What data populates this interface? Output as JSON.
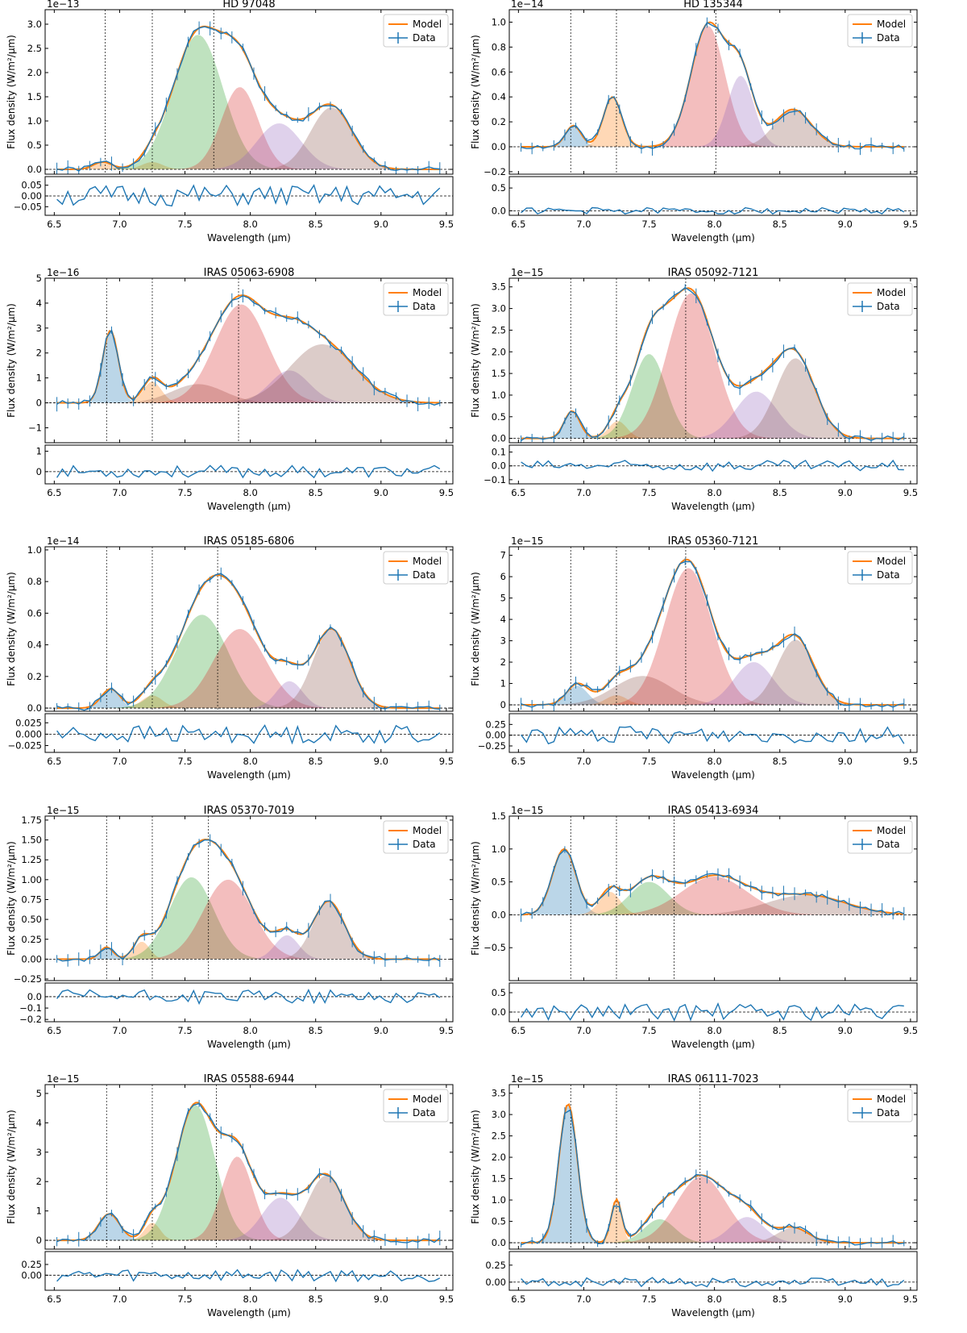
{
  "figure": {
    "legend": {
      "model": "Model",
      "data": "Data"
    },
    "ylabel": "Flux density (W/m²/µm)",
    "xlabel": "Wavelength (µm)",
    "xlim": [
      6.43,
      9.55
    ],
    "xticks": [
      "6.5",
      "7.0",
      "7.5",
      "8.0",
      "8.5",
      "9.0",
      "9.5"
    ],
    "colors": {
      "model": "#ff7f0e",
      "data": "#1f77b4",
      "c0": "#1f77b4",
      "c1": "#ff7f0e",
      "c2": "#2ca02c",
      "c3": "#d62728",
      "c4": "#9467bd",
      "c5": "#8c564b"
    }
  },
  "chart_data": [
    {
      "type": "line",
      "title": "HD 97048",
      "offset": "1e−13",
      "ylim": [
        -0.1,
        3.3
      ],
      "ticks": [
        "0.0",
        "0.5",
        "1.0",
        "1.5",
        "2.0",
        "2.5",
        "3.0"
      ],
      "tickvals": [
        0,
        0.5,
        1,
        1.5,
        2,
        2.5,
        3
      ],
      "vlines": [
        6.89,
        7.25,
        7.72
      ],
      "components": [
        {
          "c": "c1",
          "a": 0.15,
          "mu": 6.87,
          "s": 0.07
        },
        {
          "c": "c1",
          "a": 0.15,
          "mu": 7.25,
          "s": 0.08
        },
        {
          "c": "c2",
          "a": 2.78,
          "mu": 7.6,
          "s": 0.19
        },
        {
          "c": "c3",
          "a": 1.7,
          "mu": 7.92,
          "s": 0.14
        },
        {
          "c": "c4",
          "a": 0.95,
          "mu": 8.22,
          "s": 0.17
        },
        {
          "c": "c5",
          "a": 1.28,
          "mu": 8.62,
          "s": 0.16
        }
      ],
      "res": {
        "ylim": [
          -0.09,
          0.09
        ],
        "ticks": [
          "0.05",
          "0.00",
          "−0.05"
        ],
        "tickvals": [
          0.05,
          0,
          -0.05
        ],
        "amp": 0.05,
        "seed": 1
      }
    },
    {
      "type": "line",
      "title": "HD 135344",
      "offset": "1e−14",
      "ylim": [
        -0.22,
        1.1
      ],
      "ticks": [
        "−0.2",
        "0.0",
        "0.2",
        "0.4",
        "0.6",
        "0.8",
        "1.0"
      ],
      "tickvals": [
        -0.2,
        0,
        0.2,
        0.4,
        0.6,
        0.8,
        1.0
      ],
      "vlines": [
        6.9,
        7.25,
        8.01
      ],
      "components": [
        {
          "c": "c0",
          "a": 0.17,
          "mu": 6.92,
          "s": 0.06
        },
        {
          "c": "c1",
          "a": 0.4,
          "mu": 7.22,
          "s": 0.07
        },
        {
          "c": "c3",
          "a": 0.97,
          "mu": 7.95,
          "s": 0.13
        },
        {
          "c": "c4",
          "a": 0.57,
          "mu": 8.2,
          "s": 0.1
        },
        {
          "c": "c5",
          "a": 0.3,
          "mu": 8.6,
          "s": 0.14
        }
      ],
      "res": {
        "ylim": [
          -0.1,
          0.75
        ],
        "ticks": [
          "0.5",
          "0.0"
        ],
        "tickvals": [
          0.5,
          0
        ],
        "amp": 0.07,
        "seed": 2
      }
    },
    {
      "type": "line",
      "title": "IRAS 05063-6908",
      "offset": "1e−16",
      "ylim": [
        -1.6,
        5
      ],
      "ticks": [
        "−1",
        "0",
        "1",
        "2",
        "3",
        "4",
        "5"
      ],
      "tickvals": [
        -1,
        0,
        1,
        2,
        3,
        4,
        5
      ],
      "vlines": [
        6.9,
        7.25,
        7.91
      ],
      "components": [
        {
          "c": "c0",
          "a": 2.9,
          "mu": 6.93,
          "s": 0.06
        },
        {
          "c": "c1",
          "a": 0.85,
          "mu": 7.25,
          "s": 0.07
        },
        {
          "c": "c5",
          "a": 0.75,
          "mu": 7.6,
          "s": 0.2
        },
        {
          "c": "c3",
          "a": 3.95,
          "mu": 7.93,
          "s": 0.2
        },
        {
          "c": "c4",
          "a": 1.3,
          "mu": 8.3,
          "s": 0.15
        },
        {
          "c": "c5",
          "a": 2.35,
          "mu": 8.55,
          "s": 0.25
        }
      ],
      "res": {
        "ylim": [
          -0.6,
          1.3
        ],
        "ticks": [
          "1",
          "0"
        ],
        "tickvals": [
          1,
          0
        ],
        "amp": 0.3,
        "seed": 3
      }
    },
    {
      "type": "line",
      "title": "IRAS 05092-7121",
      "offset": "1e−15",
      "ylim": [
        -0.1,
        3.7
      ],
      "ticks": [
        "0.0",
        "0.5",
        "1.0",
        "1.5",
        "2.0",
        "2.5",
        "3.0",
        "3.5"
      ],
      "tickvals": [
        0,
        0.5,
        1,
        1.5,
        2,
        2.5,
        3,
        3.5
      ],
      "vlines": [
        6.9,
        7.25,
        7.78
      ],
      "components": [
        {
          "c": "c0",
          "a": 0.63,
          "mu": 6.91,
          "s": 0.06
        },
        {
          "c": "c1",
          "a": 0.4,
          "mu": 7.26,
          "s": 0.07
        },
        {
          "c": "c2",
          "a": 1.95,
          "mu": 7.5,
          "s": 0.13
        },
        {
          "c": "c3",
          "a": 3.35,
          "mu": 7.82,
          "s": 0.18
        },
        {
          "c": "c4",
          "a": 1.08,
          "mu": 8.32,
          "s": 0.16
        },
        {
          "c": "c5",
          "a": 1.85,
          "mu": 8.62,
          "s": 0.15
        }
      ],
      "res": {
        "ylim": [
          -0.13,
          0.15
        ],
        "ticks": [
          "0.1",
          "0.0",
          "−0.1"
        ],
        "tickvals": [
          0.1,
          0,
          -0.1
        ],
        "amp": 0.04,
        "seed": 4
      }
    },
    {
      "type": "line",
      "title": "IRAS 05185-6806",
      "offset": "1e−14",
      "ylim": [
        -0.02,
        1.02
      ],
      "ticks": [
        "0.0",
        "0.2",
        "0.4",
        "0.6",
        "0.8",
        "1.0"
      ],
      "tickvals": [
        0,
        0.2,
        0.4,
        0.6,
        0.8,
        1.0
      ],
      "vlines": [
        6.9,
        7.25,
        7.75
      ],
      "components": [
        {
          "c": "c0",
          "a": 0.12,
          "mu": 6.93,
          "s": 0.07
        },
        {
          "c": "c1",
          "a": 0.08,
          "mu": 7.25,
          "s": 0.08
        },
        {
          "c": "c2",
          "a": 0.59,
          "mu": 7.63,
          "s": 0.2
        },
        {
          "c": "c3",
          "a": 0.5,
          "mu": 7.92,
          "s": 0.2
        },
        {
          "c": "c4",
          "a": 0.17,
          "mu": 8.3,
          "s": 0.1
        },
        {
          "c": "c5",
          "a": 0.5,
          "mu": 8.62,
          "s": 0.14
        }
      ],
      "res": {
        "ylim": [
          -0.04,
          0.045
        ],
        "ticks": [
          "0.025",
          "0.000",
          "−0.025"
        ],
        "tickvals": [
          0.025,
          0,
          -0.025
        ],
        "amp": 0.02,
        "seed": 5
      }
    },
    {
      "type": "line",
      "title": "IRAS 05360-7121",
      "offset": "1e−15",
      "ylim": [
        -0.3,
        7.4
      ],
      "ticks": [
        "0",
        "1",
        "2",
        "3",
        "4",
        "5",
        "6",
        "7"
      ],
      "tickvals": [
        0,
        1,
        2,
        3,
        4,
        5,
        6,
        7
      ],
      "vlines": [
        6.9,
        7.25,
        7.78
      ],
      "components": [
        {
          "c": "c0",
          "a": 0.9,
          "mu": 6.95,
          "s": 0.08
        },
        {
          "c": "c1",
          "a": 0.45,
          "mu": 7.25,
          "s": 0.08
        },
        {
          "c": "c5",
          "a": 1.35,
          "mu": 7.45,
          "s": 0.22
        },
        {
          "c": "c3",
          "a": 6.4,
          "mu": 7.8,
          "s": 0.18
        },
        {
          "c": "c4",
          "a": 2.0,
          "mu": 8.3,
          "s": 0.15
        },
        {
          "c": "c5",
          "a": 3.05,
          "mu": 8.62,
          "s": 0.14
        }
      ],
      "res": {
        "ylim": [
          -0.4,
          0.5
        ],
        "ticks": [
          "0.25",
          "0.00",
          "−0.25"
        ],
        "tickvals": [
          0.25,
          0,
          -0.25
        ],
        "amp": 0.2,
        "seed": 6
      }
    },
    {
      "type": "line",
      "title": "IRAS 05370-7019",
      "offset": "1e−15",
      "ylim": [
        -0.27,
        1.8
      ],
      "ticks": [
        "−0.25",
        "0.00",
        "0.25",
        "0.50",
        "0.75",
        "1.00",
        "1.25",
        "1.50",
        "1.75"
      ],
      "tickvals": [
        -0.25,
        0,
        0.25,
        0.5,
        0.75,
        1,
        1.25,
        1.5,
        1.75
      ],
      "vlines": [
        6.9,
        7.25,
        7.68
      ],
      "components": [
        {
          "c": "c0",
          "a": 0.15,
          "mu": 6.9,
          "s": 0.05
        },
        {
          "c": "c1",
          "a": 0.22,
          "mu": 7.17,
          "s": 0.06
        },
        {
          "c": "c2",
          "a": 1.03,
          "mu": 7.55,
          "s": 0.17
        },
        {
          "c": "c3",
          "a": 1.0,
          "mu": 7.83,
          "s": 0.19
        },
        {
          "c": "c4",
          "a": 0.3,
          "mu": 8.28,
          "s": 0.09
        },
        {
          "c": "c5",
          "a": 0.73,
          "mu": 8.6,
          "s": 0.12
        }
      ],
      "res": {
        "ylim": [
          -0.22,
          0.12
        ],
        "ticks": [
          "0.0",
          "−0.1",
          "−0.2"
        ],
        "tickvals": [
          0,
          -0.1,
          -0.2
        ],
        "amp": 0.06,
        "seed": 7
      }
    },
    {
      "type": "line",
      "title": "IRAS 05413-6934",
      "offset": "1e−15",
      "ylim": [
        -1.0,
        1.5
      ],
      "ticks": [
        "−0.5",
        "0.0",
        "0.5",
        "1.0",
        "1.5"
      ],
      "tickvals": [
        -0.5,
        0,
        0.5,
        1,
        1.5
      ],
      "vlines": [
        6.9,
        7.25,
        7.69
      ],
      "components": [
        {
          "c": "c0",
          "a": 1.0,
          "mu": 6.85,
          "s": 0.09
        },
        {
          "c": "c1",
          "a": 0.35,
          "mu": 7.2,
          "s": 0.08
        },
        {
          "c": "c2",
          "a": 0.5,
          "mu": 7.5,
          "s": 0.15
        },
        {
          "c": "c3",
          "a": 0.58,
          "mu": 8.0,
          "s": 0.25
        },
        {
          "c": "c5",
          "a": 0.3,
          "mu": 8.7,
          "s": 0.3
        }
      ],
      "res": {
        "ylim": [
          -0.25,
          0.75
        ],
        "ticks": [
          "0.5",
          "0.0"
        ],
        "tickvals": [
          0.5,
          0
        ],
        "amp": 0.22,
        "seed": 8
      }
    },
    {
      "type": "line",
      "title": "IRAS 05588-6944",
      "offset": "1e−15",
      "ylim": [
        -0.3,
        5.3
      ],
      "ticks": [
        "0",
        "1",
        "2",
        "3",
        "4",
        "5"
      ],
      "tickvals": [
        0,
        1,
        2,
        3,
        4,
        5
      ],
      "vlines": [
        6.9,
        7.25,
        7.74
      ],
      "components": [
        {
          "c": "c0",
          "a": 0.9,
          "mu": 6.92,
          "s": 0.08
        },
        {
          "c": "c1",
          "a": 0.6,
          "mu": 7.25,
          "s": 0.06
        },
        {
          "c": "c2",
          "a": 4.6,
          "mu": 7.58,
          "s": 0.15
        },
        {
          "c": "c3",
          "a": 2.85,
          "mu": 7.9,
          "s": 0.12
        },
        {
          "c": "c4",
          "a": 1.45,
          "mu": 8.23,
          "s": 0.14
        },
        {
          "c": "c5",
          "a": 2.2,
          "mu": 8.58,
          "s": 0.14
        }
      ],
      "res": {
        "ylim": [
          -0.35,
          0.55
        ],
        "ticks": [
          "0.25",
          "0.00"
        ],
        "tickvals": [
          0.25,
          0
        ],
        "amp": 0.15,
        "seed": 9
      }
    },
    {
      "type": "line",
      "title": "IRAS 06111-7023",
      "offset": "1e−15",
      "ylim": [
        -0.15,
        3.7
      ],
      "ticks": [
        "0.0",
        "0.5",
        "1.0",
        "1.5",
        "2.0",
        "2.5",
        "3.0",
        "3.5"
      ],
      "tickvals": [
        0,
        0.5,
        1,
        1.5,
        2,
        2.5,
        3,
        3.5
      ],
      "vlines": [
        6.9,
        7.25,
        7.89
      ],
      "components": [
        {
          "c": "c0",
          "a": 3.25,
          "mu": 6.88,
          "s": 0.07
        },
        {
          "c": "c1",
          "a": 1.0,
          "mu": 7.25,
          "s": 0.04
        },
        {
          "c": "c2",
          "a": 0.55,
          "mu": 7.58,
          "s": 0.12
        },
        {
          "c": "c3",
          "a": 1.55,
          "mu": 7.9,
          "s": 0.19
        },
        {
          "c": "c4",
          "a": 0.6,
          "mu": 8.25,
          "s": 0.13
        },
        {
          "c": "c5",
          "a": 0.35,
          "mu": 8.6,
          "s": 0.12
        }
      ],
      "res": {
        "ylim": [
          -0.12,
          0.45
        ],
        "ticks": [
          "0.25",
          "0.00"
        ],
        "tickvals": [
          0.25,
          0
        ],
        "amp": 0.07,
        "seed": 10
      }
    }
  ]
}
